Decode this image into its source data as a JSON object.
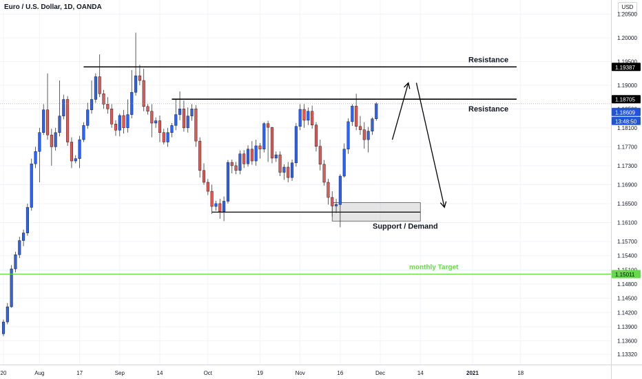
{
  "header": {
    "symbol_label": "Euro / U.S. Dollar, 1D, OANDA",
    "currency": "USD"
  },
  "colors": {
    "up": "#2962ff",
    "down": "#ef5350",
    "target": "#66d94a",
    "line": "#000000",
    "price_tag": "#2153d4"
  },
  "chart_data": {
    "type": "candlestick",
    "title": "Euro / U.S. Dollar, 1D, OANDA",
    "ylim": [
      1.131,
      1.208
    ],
    "y_ticks": [
      "1.20500",
      "1.20000",
      "1.19500",
      "1.19000",
      "1.18500",
      "1.18100",
      "1.17700",
      "1.17300",
      "1.16900",
      "1.16500",
      "1.16100",
      "1.15700",
      "1.15400",
      "1.15100",
      "1.14800",
      "1.14500",
      "1.14200",
      "1.13900",
      "1.13600",
      "1.13320"
    ],
    "x_ticks": [
      {
        "label": "20",
        "d": 0
      },
      {
        "label": "Aug",
        "d": 9
      },
      {
        "label": "17",
        "d": 19
      },
      {
        "label": "Sep",
        "d": 29
      },
      {
        "label": "14",
        "d": 39
      },
      {
        "label": "Oct",
        "d": 51
      },
      {
        "label": "19",
        "d": 64
      },
      {
        "label": "Nov",
        "d": 74
      },
      {
        "label": "16",
        "d": 84
      },
      {
        "label": "Dec",
        "d": 94
      },
      {
        "label": "14",
        "d": 104
      },
      {
        "label": "2021",
        "d": 117
      },
      {
        "label": "18",
        "d": 129
      }
    ],
    "candles": [
      [
        1.1375,
        1.14,
        1.137,
        1.1405
      ],
      [
        1.14,
        1.1432,
        1.1395,
        1.144
      ],
      [
        1.1432,
        1.1512,
        1.143,
        1.152
      ],
      [
        1.1512,
        1.1542,
        1.1505,
        1.1548
      ],
      [
        1.1542,
        1.1572,
        1.1535,
        1.158
      ],
      [
        1.1572,
        1.1588,
        1.156,
        1.1595
      ],
      [
        1.1588,
        1.1642,
        1.1582,
        1.165
      ],
      [
        1.1642,
        1.1734,
        1.1635,
        1.1745
      ],
      [
        1.1734,
        1.176,
        1.1725,
        1.177
      ],
      [
        1.176,
        1.18,
        1.1695,
        1.181
      ],
      [
        1.18,
        1.1848,
        1.1795,
        1.186
      ],
      [
        1.1848,
        1.1795,
        1.1785,
        1.1925
      ],
      [
        1.1795,
        1.177,
        1.173,
        1.1808
      ],
      [
        1.177,
        1.18,
        1.1762,
        1.181
      ],
      [
        1.18,
        1.1835,
        1.1792,
        1.191
      ],
      [
        1.1835,
        1.187,
        1.1828,
        1.188
      ],
      [
        1.187,
        1.178,
        1.1772,
        1.1877
      ],
      [
        1.178,
        1.174,
        1.1725,
        1.179
      ],
      [
        1.174,
        1.1745,
        1.1735,
        1.1752
      ],
      [
        1.1745,
        1.1785,
        1.1725,
        1.1793
      ],
      [
        1.1785,
        1.1815,
        1.178,
        1.1822
      ],
      [
        1.1815,
        1.1848,
        1.1808,
        1.1863
      ],
      [
        1.1848,
        1.187,
        1.184,
        1.191
      ],
      [
        1.187,
        1.1918,
        1.1863,
        1.1925
      ],
      [
        1.1918,
        1.1882,
        1.1875,
        1.1965
      ],
      [
        1.1882,
        1.186,
        1.185,
        1.189
      ],
      [
        1.186,
        1.185,
        1.184,
        1.1875
      ],
      [
        1.185,
        1.1818,
        1.181,
        1.186
      ],
      [
        1.1818,
        1.1805,
        1.1793,
        1.1826
      ],
      [
        1.1805,
        1.1836,
        1.1792,
        1.184
      ],
      [
        1.1836,
        1.181,
        1.1798,
        1.1848
      ],
      [
        1.181,
        1.1838,
        1.18,
        1.187
      ],
      [
        1.1838,
        1.1885,
        1.183,
        1.1932
      ],
      [
        1.1885,
        1.192,
        1.1878,
        1.2011
      ],
      [
        1.192,
        1.191,
        1.19,
        1.1943
      ],
      [
        1.191,
        1.1855,
        1.1845,
        1.1935
      ],
      [
        1.1855,
        1.1845,
        1.1838,
        1.186
      ],
      [
        1.1845,
        1.182,
        1.179,
        1.186
      ],
      [
        1.182,
        1.1825,
        1.181,
        1.1832
      ],
      [
        1.1825,
        1.18,
        1.178,
        1.1836
      ],
      [
        1.18,
        1.178,
        1.1775,
        1.1808
      ],
      [
        1.178,
        1.18,
        1.177,
        1.181
      ],
      [
        1.18,
        1.1815,
        1.179,
        1.182
      ],
      [
        1.1815,
        1.1838,
        1.1805,
        1.187
      ],
      [
        1.1838,
        1.185,
        1.1826,
        1.1887
      ],
      [
        1.185,
        1.181,
        1.1802,
        1.1868
      ],
      [
        1.181,
        1.1835,
        1.18,
        1.1853
      ],
      [
        1.1835,
        1.185,
        1.1825,
        1.186
      ],
      [
        1.185,
        1.1782,
        1.177,
        1.1858
      ],
      [
        1.1782,
        1.172,
        1.1705,
        1.179
      ],
      [
        1.172,
        1.1695,
        1.169,
        1.1735
      ],
      [
        1.1695,
        1.1676,
        1.1668,
        1.1702
      ],
      [
        1.1676,
        1.1644,
        1.1628,
        1.169
      ],
      [
        1.1644,
        1.165,
        1.1635,
        1.1656
      ],
      [
        1.165,
        1.1633,
        1.1618,
        1.166
      ],
      [
        1.1633,
        1.1655,
        1.1613,
        1.1665
      ],
      [
        1.1655,
        1.1737,
        1.165,
        1.1742
      ],
      [
        1.1737,
        1.173,
        1.1714,
        1.1743
      ],
      [
        1.173,
        1.172,
        1.1712,
        1.1738
      ],
      [
        1.172,
        1.1755,
        1.1712,
        1.1762
      ],
      [
        1.1755,
        1.1734,
        1.1725,
        1.1763
      ],
      [
        1.1734,
        1.1765,
        1.1728,
        1.1773
      ],
      [
        1.1765,
        1.174,
        1.1732,
        1.1782
      ],
      [
        1.174,
        1.1772,
        1.173,
        1.1785
      ],
      [
        1.1772,
        1.1765,
        1.1745,
        1.1778
      ],
      [
        1.1765,
        1.1819,
        1.1758,
        1.1822
      ],
      [
        1.1819,
        1.1811,
        1.1738,
        1.1825
      ],
      [
        1.1811,
        1.1746,
        1.1735,
        1.1812
      ],
      [
        1.1746,
        1.1753,
        1.1738,
        1.176
      ],
      [
        1.1753,
        1.1716,
        1.1708,
        1.176
      ],
      [
        1.1716,
        1.1727,
        1.17,
        1.1733
      ],
      [
        1.1727,
        1.1705,
        1.1695,
        1.1738
      ],
      [
        1.1705,
        1.1736,
        1.1698,
        1.1743
      ],
      [
        1.1736,
        1.1813,
        1.1728,
        1.182
      ],
      [
        1.1813,
        1.1849,
        1.1805,
        1.186
      ],
      [
        1.1849,
        1.1826,
        1.181,
        1.186
      ],
      [
        1.1826,
        1.1845,
        1.1816,
        1.1853
      ],
      [
        1.1845,
        1.1816,
        1.1808,
        1.1857
      ],
      [
        1.1816,
        1.1771,
        1.176,
        1.1822
      ],
      [
        1.1771,
        1.1733,
        1.172,
        1.1785
      ],
      [
        1.1733,
        1.1695,
        1.1688,
        1.1742
      ],
      [
        1.1695,
        1.1663,
        1.1648,
        1.1702
      ],
      [
        1.1663,
        1.1645,
        1.1622,
        1.1676
      ],
      [
        1.1645,
        1.1648,
        1.163,
        1.166
      ],
      [
        1.1648,
        1.1708,
        1.16,
        1.1712
      ],
      [
        1.1708,
        1.1765,
        1.1705,
        1.1777
      ],
      [
        1.1765,
        1.1823,
        1.1755,
        1.183
      ],
      [
        1.1823,
        1.1856,
        1.1814,
        1.186
      ],
      [
        1.1856,
        1.1813,
        1.1805,
        1.1882
      ],
      [
        1.1813,
        1.1806,
        1.1795,
        1.1835
      ],
      [
        1.1806,
        1.1785,
        1.1766,
        1.1822
      ],
      [
        1.1785,
        1.1803,
        1.1758,
        1.1812
      ],
      [
        1.1803,
        1.1829,
        1.1795,
        1.1832
      ],
      [
        1.1829,
        1.1861,
        1.1825,
        1.1864
      ]
    ],
    "annotations": {
      "resistance_upper": {
        "price": 1.19387,
        "label": "Resistance",
        "from_d": 20,
        "to_d": 128
      },
      "resistance_lower": {
        "price": 1.18705,
        "label": "Resistance",
        "from_d": 42,
        "to_d": 128
      },
      "support": {
        "price": 1.1632,
        "label": "Support / Demand",
        "from_d": 52,
        "to_d": 104
      },
      "demand_zone": {
        "top": 1.1652,
        "bottom": 1.1613,
        "from_d": 82,
        "to_d": 104
      },
      "target": {
        "price": 1.15011,
        "label": "monthly Target"
      },
      "arrow_up": {
        "from": [
          97,
          1.1785
        ],
        "to": [
          101,
          1.1905
        ]
      },
      "arrow_down": {
        "from": [
          103,
          1.1905
        ],
        "to": [
          110,
          1.1642
        ]
      }
    },
    "price_tags": {
      "target": "1.15011",
      "res_upper": "1.19387",
      "res_lower": "1.18705",
      "last": "1.18609",
      "countdown": "13:48:50"
    },
    "current_price": 1.18609
  }
}
